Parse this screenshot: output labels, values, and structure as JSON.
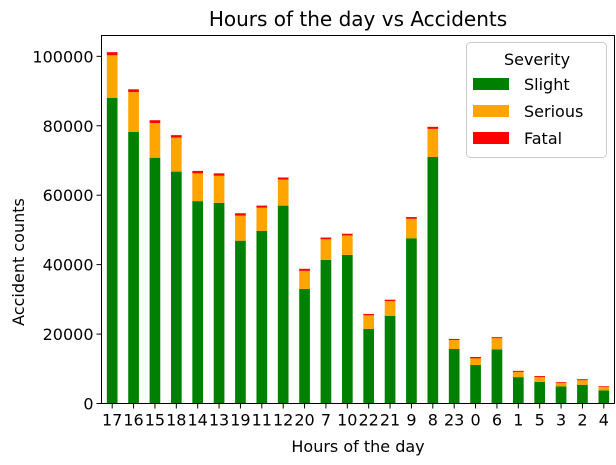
{
  "chart_data": {
    "type": "bar",
    "stacked": true,
    "title": "Hours of the day vs Accidents",
    "xlabel": "Hours of the day",
    "ylabel": "Accident counts",
    "ylim": [
      0,
      106000
    ],
    "yticks": [
      0,
      20000,
      40000,
      60000,
      80000,
      100000
    ],
    "grid": false,
    "legend": {
      "title": "Severity",
      "position": "top-right"
    },
    "categories": [
      "17",
      "16",
      "15",
      "18",
      "14",
      "13",
      "19",
      "11",
      "12",
      "20",
      "7",
      "10",
      "22",
      "21",
      "9",
      "8",
      "23",
      "0",
      "6",
      "1",
      "5",
      "3",
      "2",
      "4"
    ],
    "series": [
      {
        "name": "Slight",
        "color": "#008000",
        "values": [
          88000,
          78200,
          70800,
          66800,
          58300,
          57800,
          46900,
          49700,
          57000,
          33000,
          41400,
          42800,
          21500,
          25200,
          47600,
          71000,
          15700,
          11100,
          15600,
          7600,
          6200,
          4900,
          5400,
          3800
        ]
      },
      {
        "name": "Serious",
        "color": "#ffa500",
        "values": [
          12300,
          11500,
          10000,
          9800,
          8000,
          7800,
          7200,
          6700,
          7500,
          5200,
          5900,
          5600,
          3900,
          4300,
          5600,
          8100,
          2600,
          1900,
          3200,
          1500,
          1400,
          1100,
          1300,
          1000
        ]
      },
      {
        "name": "Fatal",
        "color": "#ff0000",
        "values": [
          900,
          800,
          800,
          700,
          700,
          700,
          700,
          600,
          600,
          600,
          500,
          500,
          400,
          400,
          500,
          600,
          300,
          400,
          300,
          300,
          300,
          200,
          300,
          200
        ]
      }
    ]
  }
}
